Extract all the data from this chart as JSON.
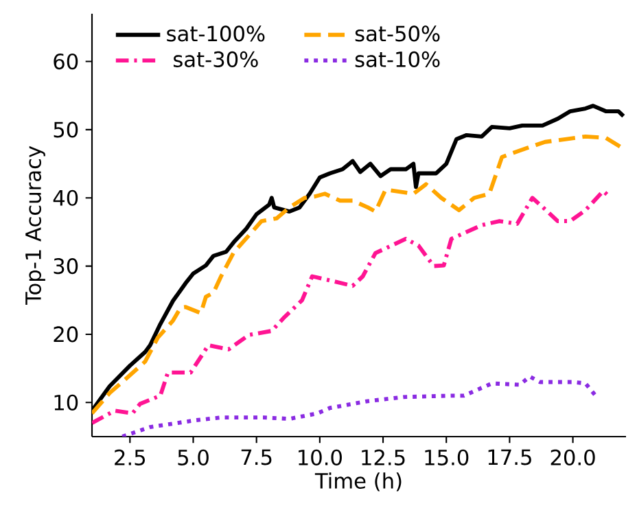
{
  "chart_data": {
    "type": "line",
    "xlabel": "Time (h)",
    "ylabel": "Top-1 Accuracy",
    "xlim": [
      1.0,
      22.1
    ],
    "ylim": [
      5,
      67
    ],
    "xticks": [
      {
        "value": 2.5,
        "label": "2.5"
      },
      {
        "value": 5,
        "label": "5.0"
      },
      {
        "value": 7.5,
        "label": "7.5"
      },
      {
        "value": 10,
        "label": "10.0"
      },
      {
        "value": 12.5,
        "label": "12.5"
      },
      {
        "value": 15,
        "label": "15.0"
      },
      {
        "value": 17.5,
        "label": "17.5"
      },
      {
        "value": 20,
        "label": "20.0"
      }
    ],
    "yticks": [
      10,
      20,
      30,
      40,
      50,
      60
    ],
    "legend": "top left",
    "series": [
      {
        "name": "sat-100%",
        "color": "#000000",
        "line_style": "solid",
        "x": [
          1.0,
          1.7,
          2.5,
          3.1,
          3.3,
          3.7,
          4.2,
          4.7,
          5.0,
          5.5,
          5.8,
          6.3,
          6.6,
          7.1,
          7.5,
          8.0,
          8.1,
          8.2,
          8.8,
          9.2,
          9.6,
          10.0,
          10.4,
          10.9,
          11.3,
          11.6,
          12.0,
          12.4,
          12.8,
          13.4,
          13.7,
          13.8,
          13.9,
          14.6,
          15.0,
          15.4,
          15.8,
          16.4,
          16.8,
          17.5,
          18.0,
          18.8,
          19.4,
          19.9,
          20.5,
          20.8,
          21.3,
          21.8,
          22.0
        ],
        "values": [
          8.8,
          12.4,
          15.4,
          17.4,
          18.4,
          21.5,
          24.9,
          27.5,
          28.9,
          30.1,
          31.5,
          32.1,
          33.5,
          35.5,
          37.6,
          39.0,
          40.0,
          38.6,
          38.0,
          38.6,
          40.6,
          43.0,
          43.6,
          44.2,
          45.4,
          43.8,
          45.0,
          43.2,
          44.2,
          44.2,
          45.0,
          41.6,
          43.6,
          43.6,
          45.0,
          48.6,
          49.2,
          49.0,
          50.4,
          50.2,
          50.6,
          50.6,
          51.6,
          52.7,
          53.1,
          53.5,
          52.7,
          52.7,
          52.0
        ]
      },
      {
        "name": "sat-50%",
        "color": "#ffa500",
        "line_style": "dashed",
        "x": [
          1.0,
          1.7,
          2.5,
          3.1,
          3.6,
          4.2,
          4.5,
          4.7,
          5.3,
          5.5,
          5.8,
          6.1,
          6.6,
          7.2,
          7.7,
          8.3,
          8.8,
          9.4,
          9.8,
          10.2,
          10.8,
          11.3,
          11.9,
          12.2,
          12.6,
          13.7,
          14.2,
          14.8,
          15.5,
          16.1,
          16.7,
          17.2,
          18.1,
          18.9,
          19.7,
          20.5,
          21.3,
          22.0
        ],
        "values": [
          8.4,
          11.4,
          14.0,
          16.0,
          19.5,
          22.0,
          23.9,
          24.0,
          23.1,
          25.5,
          26.1,
          28.5,
          32.0,
          34.5,
          36.6,
          37.0,
          38.6,
          40.0,
          40.2,
          40.6,
          39.6,
          39.6,
          38.6,
          38.0,
          41.2,
          40.6,
          42.0,
          40.0,
          38.2,
          40.0,
          40.6,
          46.0,
          47.2,
          48.2,
          48.6,
          49.0,
          48.8,
          47.2
        ]
      },
      {
        "name": "sat-30%",
        "color": "#ff1493",
        "line_style": "dashdot",
        "x": [
          1.0,
          1.9,
          2.6,
          2.9,
          3.7,
          4.0,
          4.9,
          5.6,
          6.4,
          7.2,
          8.1,
          8.6,
          9.3,
          9.7,
          10.4,
          11.3,
          11.7,
          12.2,
          13.4,
          13.9,
          14.5,
          14.9,
          15.2,
          16.4,
          17.1,
          17.8,
          18.4,
          19.0,
          19.4,
          19.9,
          20.5,
          21.2,
          21.5
        ],
        "values": [
          7.0,
          8.8,
          8.4,
          9.8,
          11.0,
          14.4,
          14.4,
          18.4,
          17.8,
          19.9,
          20.5,
          22.5,
          25.0,
          28.5,
          27.9,
          27.1,
          28.5,
          31.9,
          34.0,
          33.0,
          30.0,
          30.1,
          34.0,
          36.0,
          36.6,
          36.2,
          40.0,
          38.0,
          36.6,
          36.6,
          38.2,
          41.0,
          40.0
        ]
      },
      {
        "name": "sat-10%",
        "color": "#8a2be2",
        "line_style": "dotted",
        "x": [
          2.2,
          3.3,
          5.1,
          6.1,
          7.8,
          8.8,
          9.9,
          10.4,
          11.9,
          13.3,
          15.2,
          15.7,
          16.8,
          17.9,
          18.3,
          18.7,
          20.0,
          20.5,
          20.9
        ],
        "values": [
          5.0,
          6.4,
          7.4,
          7.8,
          7.8,
          7.6,
          8.4,
          9.2,
          10.2,
          10.8,
          11.0,
          11.0,
          12.8,
          12.6,
          13.8,
          13.0,
          13.0,
          12.8,
          11.0
        ]
      }
    ]
  }
}
